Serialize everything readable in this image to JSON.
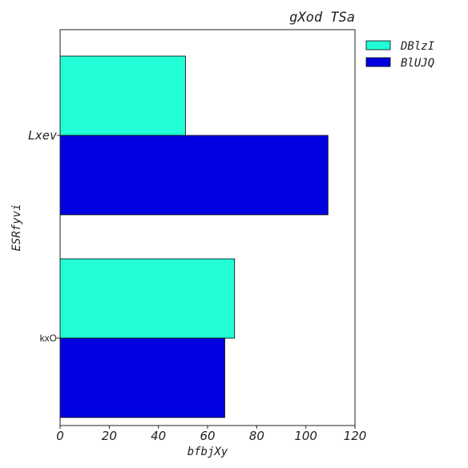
{
  "chart_data": {
    "type": "bar",
    "orientation": "horizontal",
    "title": "gXod TSa",
    "xlabel": "bfbjXy",
    "ylabel": "ESRfyvi",
    "categories": [
      "Lxev",
      "kxO"
    ],
    "series": [
      {
        "name": "DBlzI",
        "color": "#22ffd6",
        "values": [
          51,
          71
        ]
      },
      {
        "name": "BlUJQ",
        "color": "#0000e1",
        "values": [
          109,
          67
        ]
      }
    ],
    "xlim": [
      0,
      120
    ],
    "xticks": [
      0,
      20,
      40,
      60,
      80,
      100,
      120
    ],
    "grid": false,
    "legend_position": "outside-top-right"
  }
}
